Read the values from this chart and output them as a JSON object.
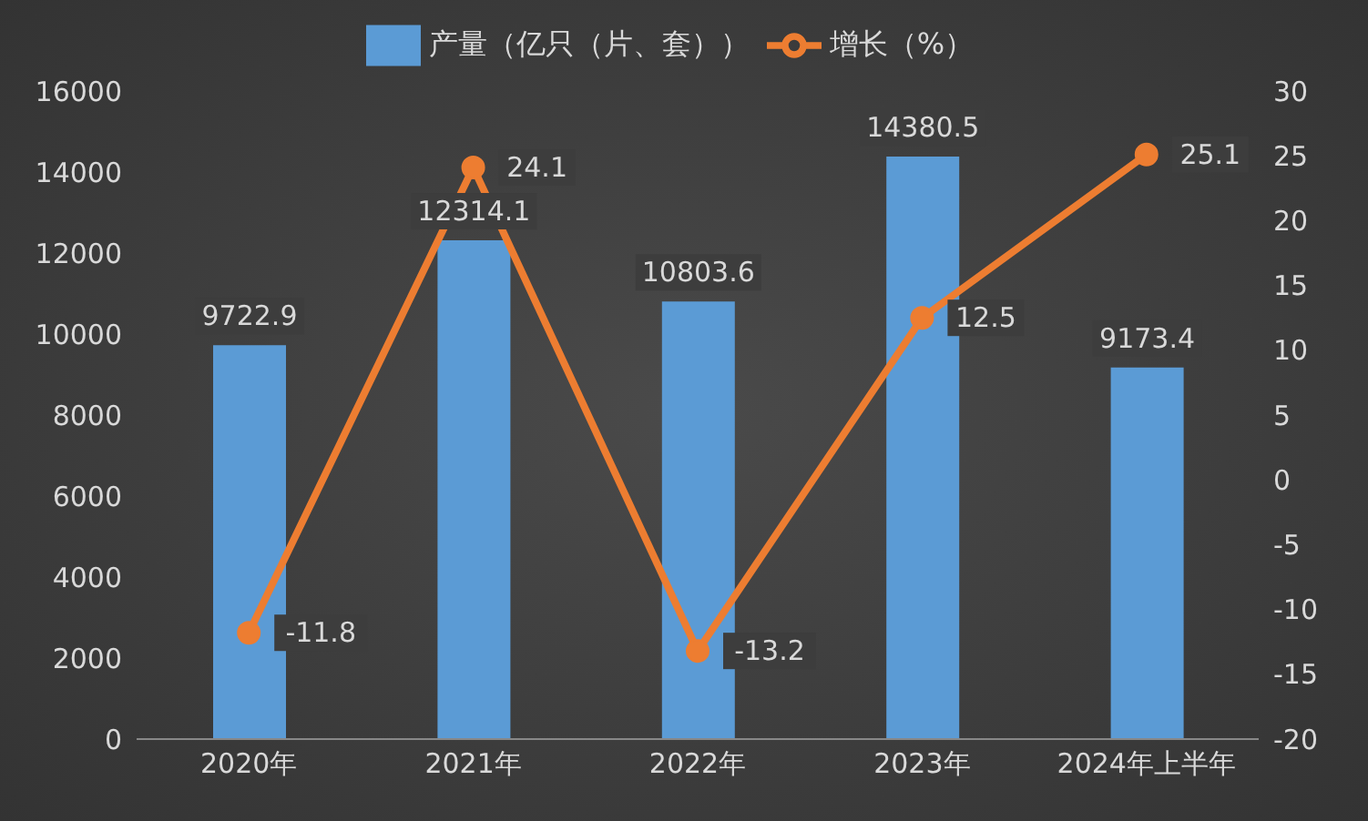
{
  "chart_data": {
    "type": "bar",
    "categories": [
      "2020年",
      "2021年",
      "2022年",
      "2023年",
      "2024年上半年"
    ],
    "series": [
      {
        "name": "产量（亿只（片、套））",
        "color": "#5b9bd5",
        "values": [
          9722.9,
          12314.1,
          10803.6,
          14380.5,
          9173.4
        ]
      },
      {
        "name": "增长（%）",
        "type": "line",
        "axis": "y2",
        "color": "#ed7d31",
        "values": [
          -11.8,
          24.1,
          -13.2,
          12.5,
          25.1
        ]
      }
    ],
    "ylim": [
      0,
      16000
    ],
    "yticks": [
      0,
      2000,
      4000,
      6000,
      8000,
      10000,
      12000,
      14000,
      16000
    ],
    "y2lim": [
      -20,
      30
    ],
    "y2ticks": [
      -20,
      -15,
      -10,
      -5,
      0,
      5,
      10,
      15,
      20,
      25,
      30
    ],
    "data_labels": true,
    "legend": "top",
    "marker": "circle",
    "grid": false
  }
}
